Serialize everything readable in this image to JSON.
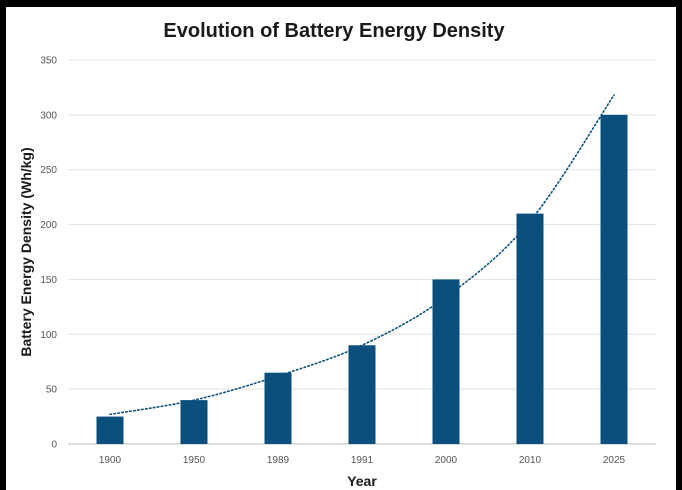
{
  "chart_data": {
    "type": "bar",
    "title": "Evolution of Battery Energy Density",
    "xlabel": "Year",
    "ylabel": "Battery Energy Density (Wh/kg)",
    "categories": [
      "1900",
      "1950",
      "1989",
      "1991",
      "2000",
      "2010",
      "2025"
    ],
    "values": [
      25,
      40,
      65,
      90,
      150,
      210,
      300
    ],
    "ylim": [
      0,
      350
    ],
    "yticks": [
      0,
      50,
      100,
      150,
      200,
      250,
      300,
      350
    ],
    "trendline": {
      "style": "dotted",
      "kind": "exponential",
      "values": [
        27,
        40,
        62,
        90,
        134,
        203,
        318
      ]
    },
    "grid": true,
    "legend": "none",
    "colors": {
      "bar": "#0b4f7c",
      "trendline": "#0b4f7c",
      "grid": "#e3e3e3",
      "background": "#ffffff",
      "frame": "#000000"
    }
  }
}
